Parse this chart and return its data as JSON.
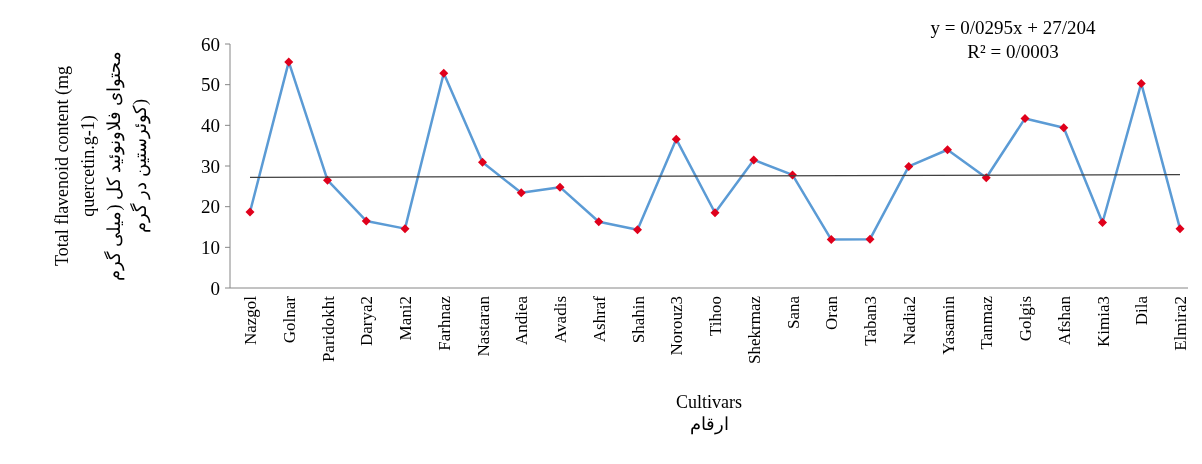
{
  "chart_data": {
    "type": "line",
    "xlabel": "Cultivars\nارقام",
    "ylabel": "Total flavenoid content (mg quercetin.g-1)\nمحتوای فلاونوئید کل (میلی گرم کوئرستین در گرم)",
    "categories": [
      "Nazgol",
      "Golnar",
      "Paridokht",
      "Darya2",
      "Mani2",
      "Farhnaz",
      "Nastaran",
      "Andiea",
      "Avadis",
      "Ashraf",
      "Shahin",
      "Norouz3",
      "Tihoo",
      "Shekrmaz",
      "Sana",
      "Oran",
      "Taban3",
      "Nadia2",
      "Yasamin",
      "Tanmaz",
      "Golgis",
      "Afshan",
      "Kimia3",
      "Dila",
      "Elmira2"
    ],
    "series": [
      {
        "color": "#5b9bd5",
        "marker": "diamond",
        "values": [
          18.7,
          55.6,
          26.5,
          16.5,
          14.6,
          52.8,
          30.9,
          23.4,
          24.8,
          16.3,
          14.3,
          36.6,
          18.5,
          31.5,
          27.8,
          11.9,
          12.0,
          29.9,
          34.0,
          27.1,
          41.7,
          39.4,
          16.1,
          50.3,
          14.6
        ]
      },
      {
        "type": "line",
        "color": "#404040",
        "marker": "none",
        "x": [
          "Nazgol",
          "Elmira2"
        ],
        "values": [
          27.2,
          27.9
        ]
      }
    ],
    "ylim": [
      0,
      60
    ],
    "yticks": [
      0,
      10,
      20,
      30,
      40,
      50,
      60
    ],
    "grid": false,
    "annotations": [
      "y = 0/0295x + 27/204\nR² = 0/0003"
    ]
  }
}
